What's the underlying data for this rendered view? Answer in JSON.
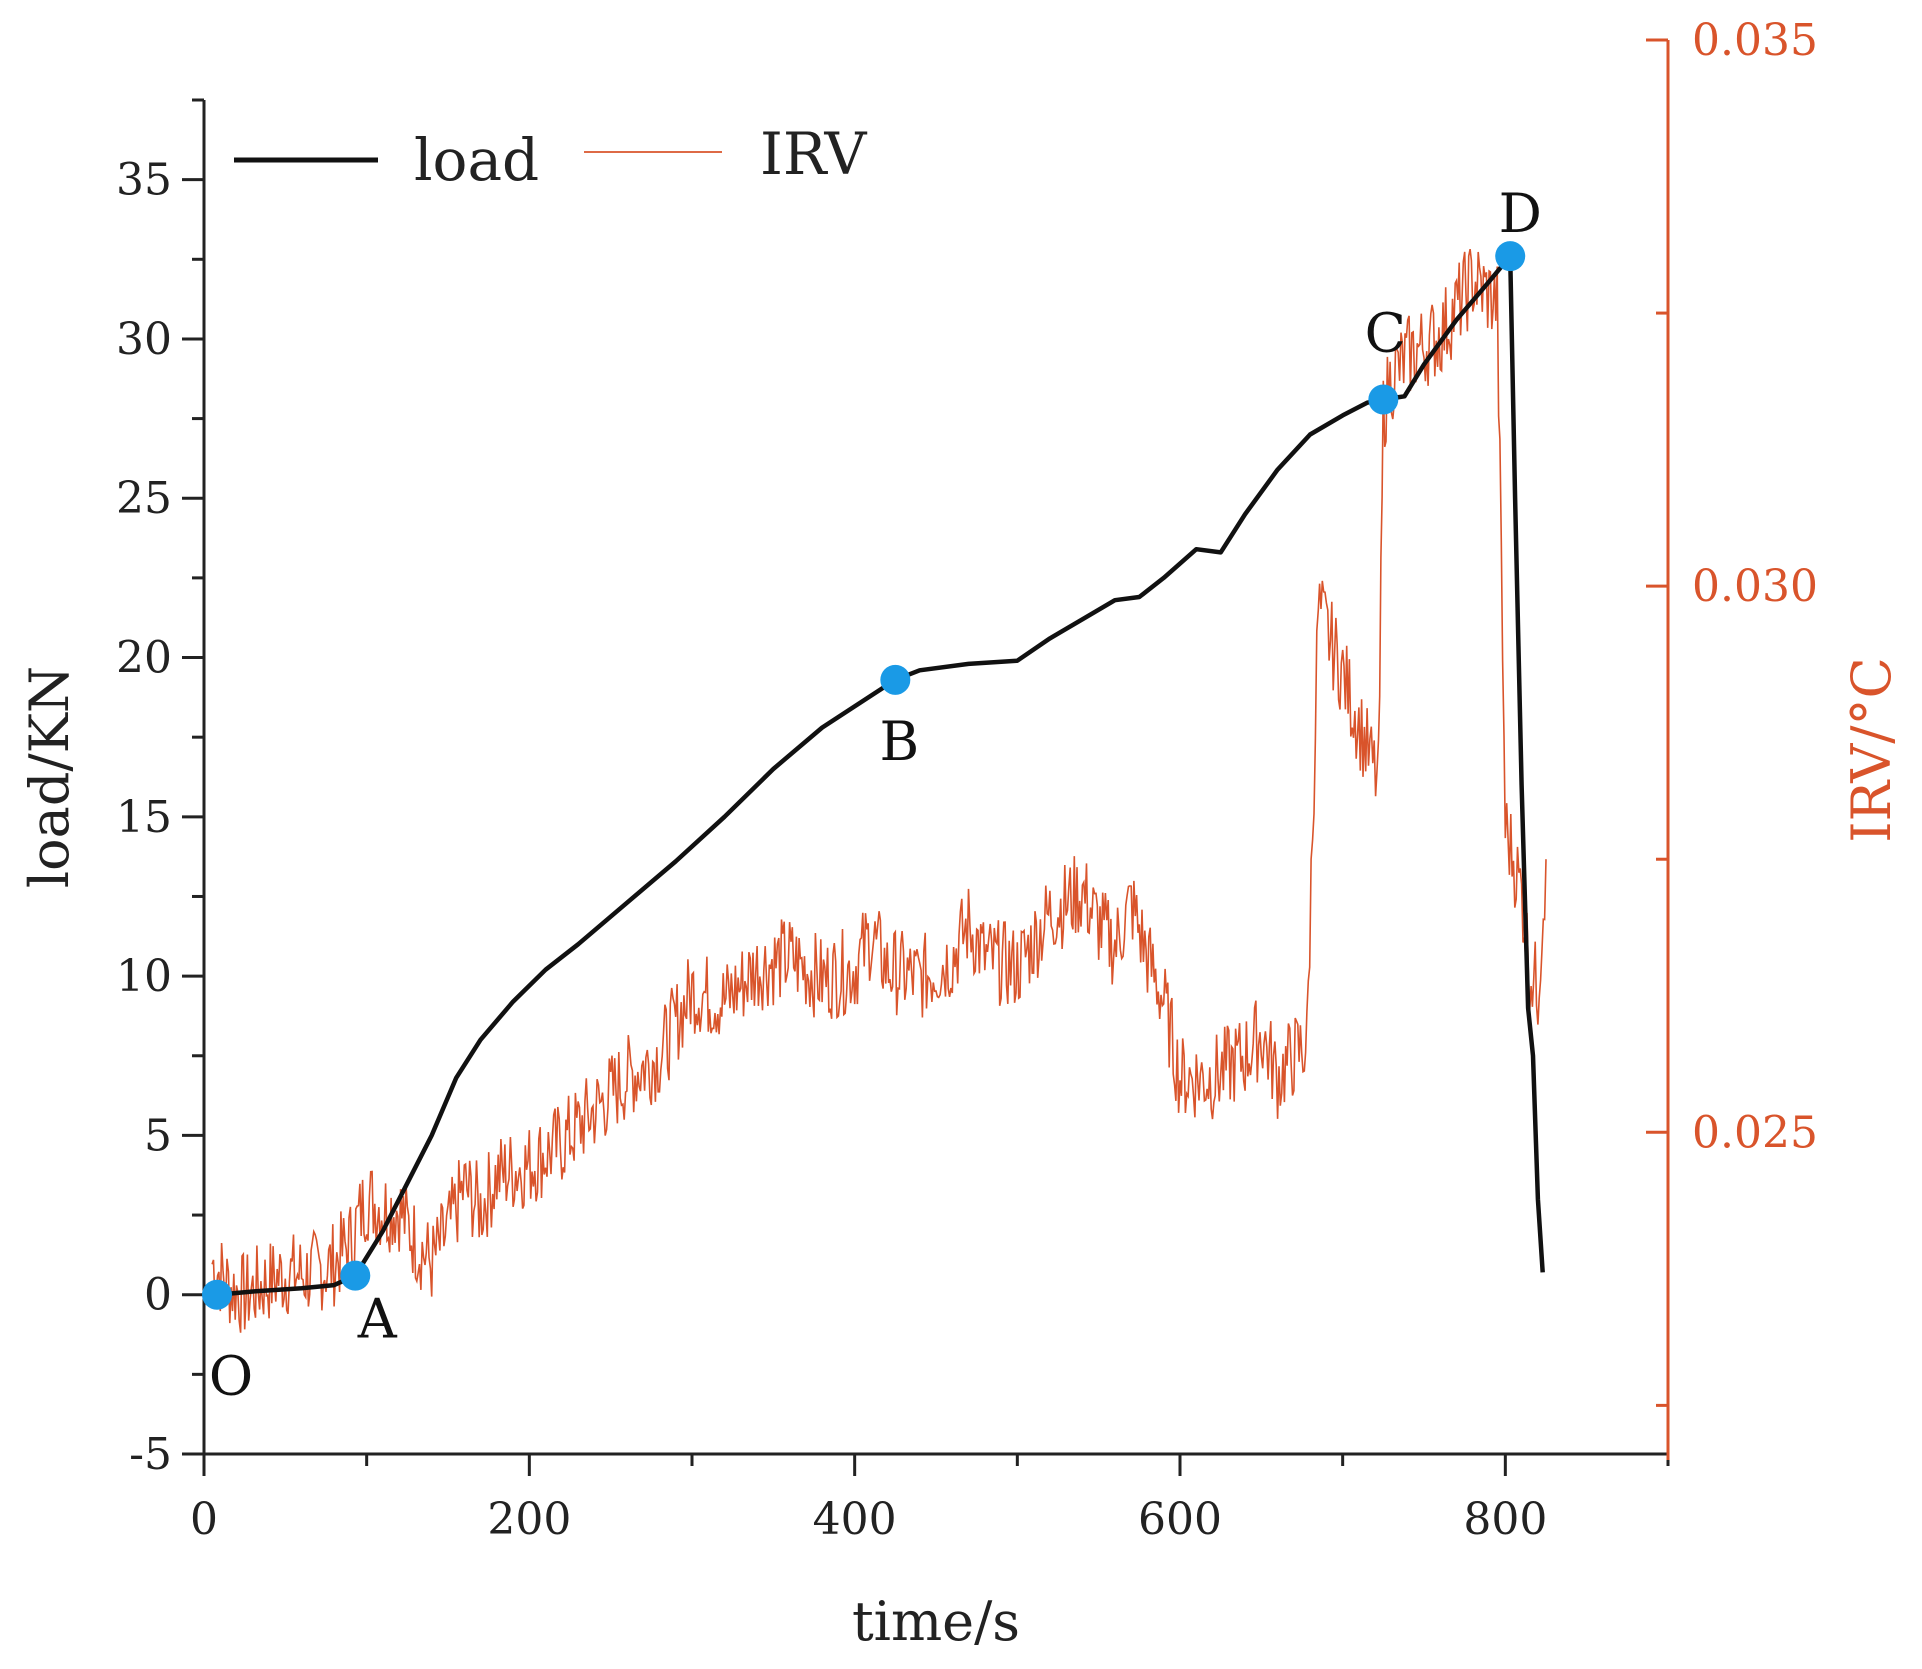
{
  "chart_data": {
    "type": "line",
    "title": "",
    "xlabel": "time/s",
    "ylabel_left": "load/KN",
    "ylabel_right": "IRV/°C",
    "xlim": [
      0,
      900
    ],
    "ylim_left": [
      -5,
      37.5
    ],
    "ylim_right": [
      0.022,
      0.035
    ],
    "x_ticks": [
      0,
      200,
      400,
      600,
      800
    ],
    "x_tick_labels": [
      "0",
      "200",
      "400",
      "600",
      "800"
    ],
    "left_ticks": [
      -5,
      0,
      5,
      10,
      15,
      20,
      25,
      30,
      35
    ],
    "left_tick_labels": [
      "-5",
      "0",
      "5",
      "10",
      "15",
      "20",
      "25",
      "30",
      "35"
    ],
    "right_ticks": [
      0.025,
      0.03,
      0.035
    ],
    "right_tick_labels": [
      "0.025",
      "0.030",
      "0.035"
    ],
    "legend": [
      {
        "name": "load",
        "color": "#111111"
      },
      {
        "name": "IRV",
        "color": "#d9542b"
      }
    ],
    "legend_position": "top-left",
    "series": [
      {
        "name": "load",
        "axis": "left",
        "color": "#111111",
        "x": [
          8,
          30,
          60,
          80,
          93,
          110,
          125,
          140,
          155,
          170,
          190,
          210,
          230,
          260,
          290,
          320,
          350,
          380,
          410,
          425,
          440,
          470,
          500,
          520,
          540,
          560,
          575,
          590,
          610,
          625,
          640,
          660,
          680,
          700,
          715,
          725,
          738,
          750,
          770,
          790,
          803,
          806,
          810,
          814,
          817,
          820,
          823
        ],
        "y": [
          0,
          0.1,
          0.2,
          0.3,
          0.6,
          2.0,
          3.5,
          5.0,
          6.8,
          8.0,
          9.2,
          10.2,
          11.0,
          12.3,
          13.6,
          15.0,
          16.5,
          17.8,
          18.8,
          19.3,
          19.6,
          19.8,
          19.9,
          20.6,
          21.2,
          21.8,
          21.9,
          22.5,
          23.4,
          23.3,
          24.5,
          25.9,
          27.0,
          27.6,
          28.0,
          28.1,
          28.2,
          29.2,
          30.6,
          31.8,
          32.6,
          25.0,
          16.0,
          9.0,
          7.5,
          3.0,
          0.7
        ]
      },
      {
        "name": "IRV",
        "axis": "right",
        "color": "#d9542b",
        "x": [
          5,
          15,
          25,
          35,
          50,
          65,
          80,
          90,
          100,
          110,
          120,
          130,
          140,
          150,
          160,
          170,
          180,
          200,
          220,
          240,
          260,
          280,
          290,
          300,
          320,
          340,
          360,
          380,
          400,
          410,
          420,
          440,
          460,
          470,
          480,
          500,
          520,
          540,
          550,
          560,
          570,
          580,
          590,
          600,
          620,
          640,
          650,
          660,
          670,
          678,
          685,
          700,
          715,
          722,
          725,
          730,
          740,
          760,
          780,
          795,
          800,
          810,
          815,
          820,
          825
        ],
        "y": [
          0.0238,
          0.0236,
          0.0235,
          0.0236,
          0.0237,
          0.0237,
          0.0238,
          0.024,
          0.0244,
          0.0243,
          0.0243,
          0.024,
          0.0238,
          0.0241,
          0.0245,
          0.0243,
          0.0246,
          0.0247,
          0.0249,
          0.0252,
          0.0255,
          0.0257,
          0.026,
          0.0263,
          0.0262,
          0.0265,
          0.0266,
          0.0264,
          0.0265,
          0.0268,
          0.0265,
          0.0264,
          0.0266,
          0.0269,
          0.0266,
          0.0265,
          0.027,
          0.0272,
          0.0269,
          0.0267,
          0.0271,
          0.0266,
          0.0262,
          0.0255,
          0.0255,
          0.0257,
          0.0259,
          0.0255,
          0.0257,
          0.0258,
          0.0298,
          0.0292,
          0.0285,
          0.0282,
          0.0316,
          0.0319,
          0.0321,
          0.0323,
          0.0328,
          0.0326,
          0.0278,
          0.0272,
          0.0265,
          0.0263,
          0.0275
        ]
      }
    ],
    "annotations": [
      {
        "label": "O",
        "x": 8,
        "y": 0
      },
      {
        "label": "A",
        "x": 93,
        "y": 0.6
      },
      {
        "label": "B",
        "x": 425,
        "y": 19.3
      },
      {
        "label": "C",
        "x": 725,
        "y": 28.1
      },
      {
        "label": "D",
        "x": 803,
        "y": 32.6
      }
    ],
    "colors": {
      "load": "#111111",
      "irv": "#d9542b",
      "marker": "#1a9ae6",
      "axis": "#222222",
      "right_axis": "#d9542b"
    }
  }
}
